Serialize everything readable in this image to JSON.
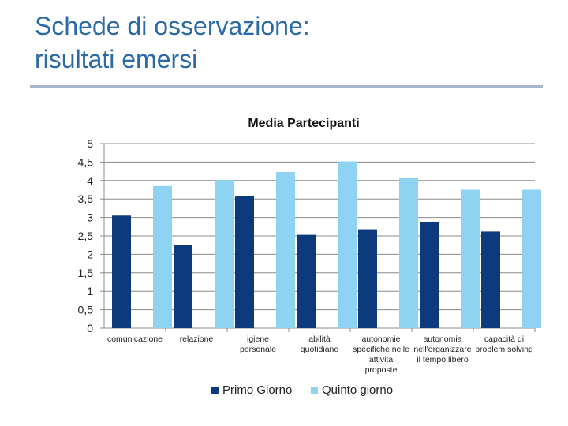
{
  "slide": {
    "title_line1": "Schede di osservazione:",
    "title_line2": "risultati emersi"
  },
  "chart_data": {
    "type": "bar",
    "title": "Media Partecipanti",
    "xlabel": "",
    "ylabel": "",
    "ylim": [
      0,
      5
    ],
    "yticks": [
      "0",
      "0,5",
      "1",
      "1,5",
      "2",
      "2,5",
      "3",
      "3,5",
      "4",
      "4,5",
      "5"
    ],
    "grid": true,
    "legend_position": "bottom",
    "categories": [
      [
        "comunicazione"
      ],
      [
        "relazione"
      ],
      [
        "igiene",
        "personale"
      ],
      [
        "abilità",
        "quotidiane"
      ],
      [
        "autonomie",
        "specifiche nelle",
        "attività",
        "proposte"
      ],
      [
        "autonomia",
        "nell'organizzare",
        "il tempo libero"
      ],
      [
        "capacità di",
        "problem solving"
      ]
    ],
    "series": [
      {
        "name": "Primo Giorno",
        "color": "#0d3a7c",
        "values": [
          3.05,
          2.25,
          3.58,
          2.53,
          2.68,
          2.87,
          2.62
        ]
      },
      {
        "name": "Quinto giorno",
        "color": "#8fd3f3",
        "values": [
          3.85,
          4.02,
          4.23,
          4.52,
          4.08,
          3.75,
          3.75
        ]
      }
    ]
  }
}
